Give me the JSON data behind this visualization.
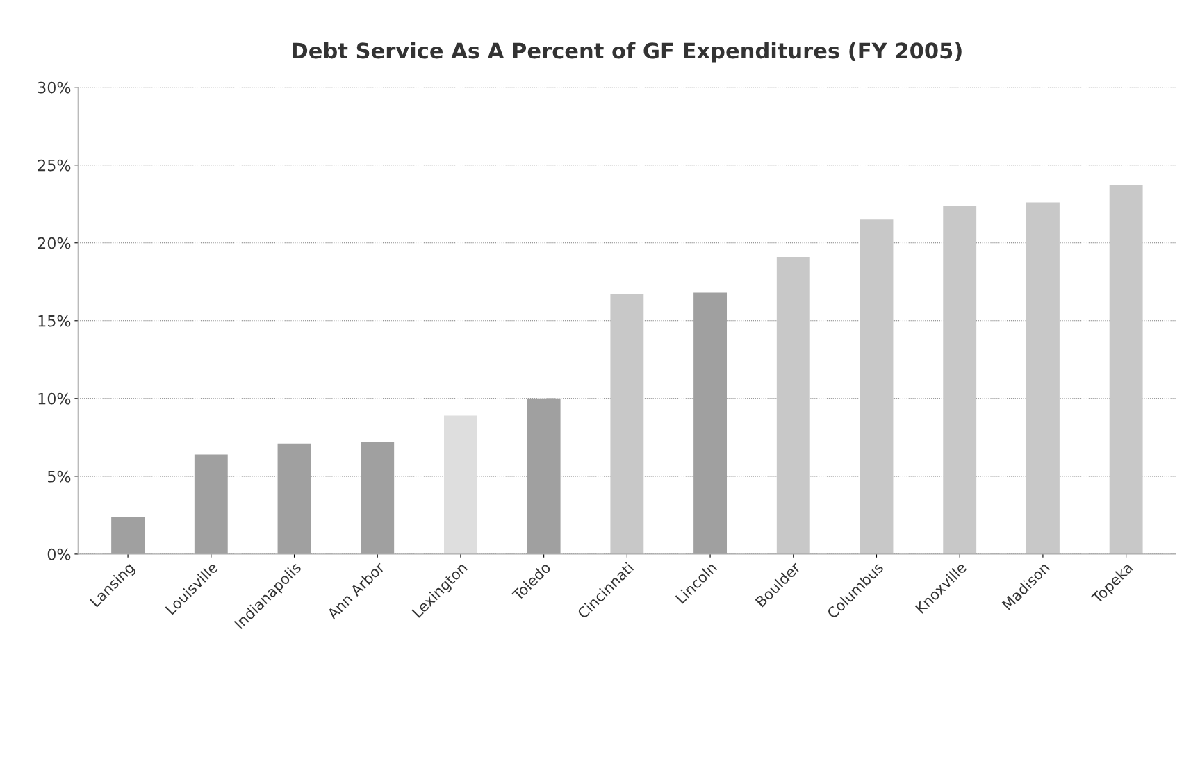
{
  "chart_data": {
    "type": "bar",
    "title": "Debt Service As A Percent of GF Expenditures (FY 2005)",
    "categories": [
      "Lansing",
      "Louisville",
      "Indianapolis",
      "Ann Arbor",
      "Lexington",
      "Toledo",
      "Cincinnati",
      "Lincoln",
      "Boulder",
      "Columbus",
      "Knoxville",
      "Madison",
      "Topeka"
    ],
    "values": [
      2.4,
      6.4,
      7.1,
      7.2,
      8.9,
      10.0,
      16.7,
      16.8,
      19.1,
      21.5,
      22.4,
      22.6,
      23.7
    ],
    "colors": [
      "#a0a0a0",
      "#a0a0a0",
      "#a0a0a0",
      "#a0a0a0",
      "#dedede",
      "#a0a0a0",
      "#c8c8c8",
      "#a0a0a0",
      "#c8c8c8",
      "#c8c8c8",
      "#c8c8c8",
      "#c8c8c8",
      "#c8c8c8"
    ],
    "ylim": [
      0,
      30
    ],
    "yticks": [
      {
        "value": 0,
        "label": "0%"
      },
      {
        "value": 5,
        "label": "5%"
      },
      {
        "value": 10,
        "label": "10%"
      },
      {
        "value": 15,
        "label": "15%"
      },
      {
        "value": 20,
        "label": "20%"
      },
      {
        "value": 25,
        "label": "25%"
      },
      {
        "value": 30,
        "label": "30%"
      }
    ],
    "grid": "y",
    "legend": false
  }
}
